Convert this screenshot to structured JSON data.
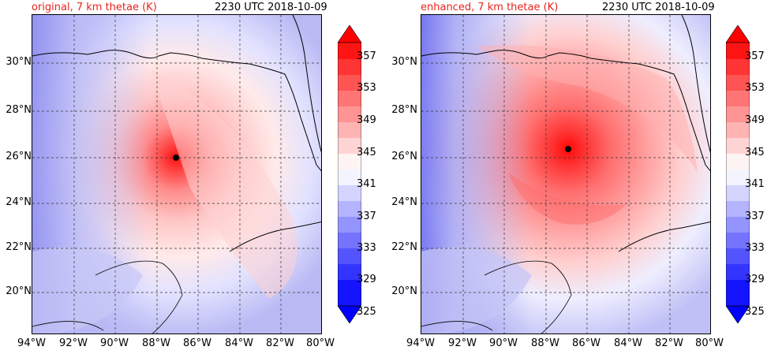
{
  "panels": [
    {
      "title": "original, 7 km thetae (K)",
      "timestamp": "2230 UTC 2018-10-09",
      "center_marker": {
        "lon": -87.2,
        "lat": 26.0
      }
    },
    {
      "title": "enhanced, 7 km thetae (K)",
      "timestamp": "2230 UTC 2018-10-09",
      "center_marker": {
        "lon": -87.0,
        "lat": 26.3
      }
    }
  ],
  "axes": {
    "lat_labels": [
      "30°N",
      "28°N",
      "26°N",
      "24°N",
      "22°N",
      "20°N"
    ],
    "lon_labels": [
      "94°W",
      "92°W",
      "90°W",
      "88°W",
      "86°W",
      "84°W",
      "82°W",
      "80°W"
    ],
    "lon_range": [
      -94,
      -80
    ],
    "lat_range": [
      18.1,
      32.0
    ],
    "gridlines": "dashed"
  },
  "colorbar": {
    "labels": [
      "357",
      "353",
      "349",
      "345",
      "341",
      "337",
      "333",
      "329",
      "325"
    ],
    "range": [
      325,
      359
    ],
    "extend": "both",
    "colormap": "bwr",
    "low_color": "#0000ff",
    "mid_color": "#ffffff",
    "high_color": "#ff0000"
  },
  "colors": {
    "title_accent": "#e8231c",
    "marker": "#000000"
  }
}
